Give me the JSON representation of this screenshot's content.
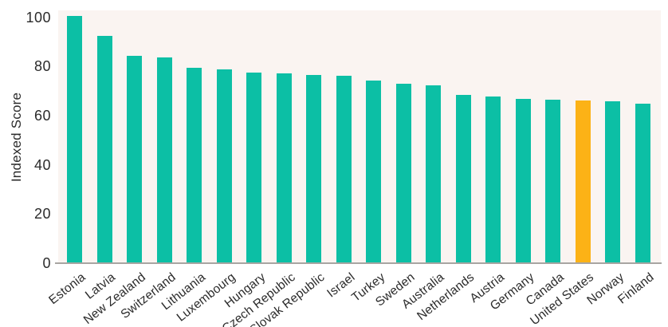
{
  "chart_data": {
    "type": "bar",
    "title": "",
    "xlabel": "",
    "ylabel": "Indexed Score",
    "y_ticks": [
      0,
      20,
      40,
      60,
      80,
      100
    ],
    "ylim": [
      0,
      103
    ],
    "grid": false,
    "legend": "none",
    "categories": [
      "Estonia",
      "Latvia",
      "New Zealand",
      "Switzerland",
      "Lithuania",
      "Luxembourg",
      "Hungary",
      "Czech Republic",
      "Slovak Republic",
      "Israel",
      "Turkey",
      "Sweden",
      "Australia",
      "Netherlands",
      "Austria",
      "Germany",
      "Canada",
      "United States",
      "Norway",
      "Finland"
    ],
    "values": [
      100.5,
      92.3,
      84.3,
      83.8,
      79.5,
      78.7,
      77.5,
      77.2,
      76.6,
      76.3,
      74.4,
      73.0,
      72.3,
      68.3,
      67.8,
      66.8,
      66.4,
      66.3,
      66.0,
      64.9
    ],
    "highlight_category": "United States",
    "colors": {
      "bar_default": "#0cbfa5",
      "bar_highlight": "#fcb216",
      "plot_background": "#faf4f1",
      "axis_line": "#a8a5a2",
      "text": "#2b2b2b"
    }
  }
}
